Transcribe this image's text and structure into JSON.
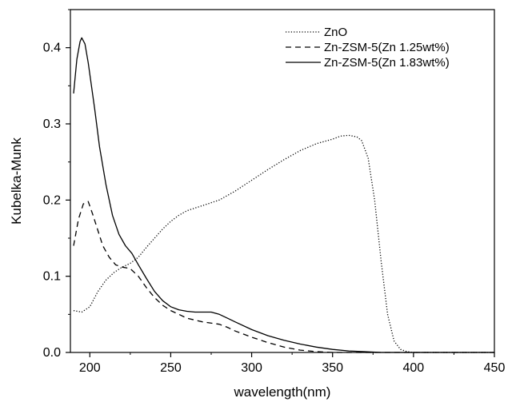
{
  "chart_data": {
    "type": "line",
    "title": "",
    "xlabel": "wavelength(nm)",
    "ylabel": "Kubelka-Munk",
    "xlim": [
      188,
      450
    ],
    "ylim": [
      0,
      0.45
    ],
    "xticks": [
      200,
      250,
      300,
      350,
      400,
      450
    ],
    "yticks": [
      0.0,
      0.1,
      0.2,
      0.3,
      0.4
    ],
    "xtick_labels": [
      "200",
      "250",
      "300",
      "350",
      "400",
      "450"
    ],
    "ytick_labels": [
      "0.0",
      "0.1",
      "0.2",
      "0.3",
      "0.4"
    ],
    "grid": false,
    "legend_position": "top-right",
    "series": [
      {
        "name": "ZnO",
        "style": "dotted",
        "color": "#000000",
        "x": [
          190,
          195,
          200,
          205,
          210,
          215,
          220,
          225,
          230,
          235,
          240,
          245,
          250,
          255,
          260,
          270,
          280,
          290,
          300,
          310,
          320,
          330,
          340,
          350,
          355,
          360,
          365,
          368,
          372,
          376,
          380,
          384,
          388,
          392,
          396,
          400,
          410,
          420,
          450
        ],
        "y": [
          0.055,
          0.053,
          0.06,
          0.08,
          0.095,
          0.105,
          0.112,
          0.117,
          0.125,
          0.138,
          0.15,
          0.162,
          0.172,
          0.18,
          0.186,
          0.193,
          0.2,
          0.212,
          0.226,
          0.24,
          0.253,
          0.265,
          0.274,
          0.28,
          0.284,
          0.285,
          0.283,
          0.278,
          0.255,
          0.2,
          0.12,
          0.05,
          0.015,
          0.004,
          0.001,
          0.0,
          0.0,
          0.0,
          0.0
        ]
      },
      {
        "name": "Zn-ZSM-5(Zn 1.25wt%)",
        "style": "dashed",
        "color": "#000000",
        "x": [
          190,
          193,
          196,
          199,
          202,
          205,
          208,
          212,
          216,
          220,
          225,
          230,
          235,
          240,
          245,
          250,
          255,
          260,
          270,
          280,
          285,
          290,
          300,
          310,
          320,
          330,
          340,
          350,
          360,
          380,
          400,
          450
        ],
        "y": [
          0.14,
          0.175,
          0.195,
          0.198,
          0.18,
          0.16,
          0.14,
          0.125,
          0.115,
          0.112,
          0.11,
          0.1,
          0.085,
          0.072,
          0.062,
          0.055,
          0.05,
          0.045,
          0.04,
          0.037,
          0.033,
          0.028,
          0.02,
          0.013,
          0.007,
          0.003,
          0.001,
          0.0,
          0.0,
          0.0,
          0.0,
          0.0
        ]
      },
      {
        "name": "Zn-ZSM-5(Zn 1.83wt%)",
        "style": "solid",
        "color": "#000000",
        "x": [
          190,
          192,
          194,
          195,
          197,
          199,
          201,
          203,
          206,
          210,
          214,
          218,
          222,
          226,
          230,
          235,
          240,
          245,
          250,
          255,
          260,
          265,
          270,
          275,
          280,
          285,
          290,
          300,
          310,
          320,
          330,
          340,
          350,
          360,
          370,
          380,
          390,
          400,
          450
        ],
        "y": [
          0.34,
          0.385,
          0.408,
          0.413,
          0.405,
          0.38,
          0.35,
          0.32,
          0.27,
          0.22,
          0.18,
          0.155,
          0.14,
          0.13,
          0.115,
          0.097,
          0.08,
          0.068,
          0.06,
          0.056,
          0.054,
          0.053,
          0.053,
          0.053,
          0.05,
          0.045,
          0.04,
          0.03,
          0.022,
          0.016,
          0.011,
          0.007,
          0.004,
          0.002,
          0.001,
          0.0,
          0.0,
          0.0,
          0.0
        ]
      }
    ]
  }
}
